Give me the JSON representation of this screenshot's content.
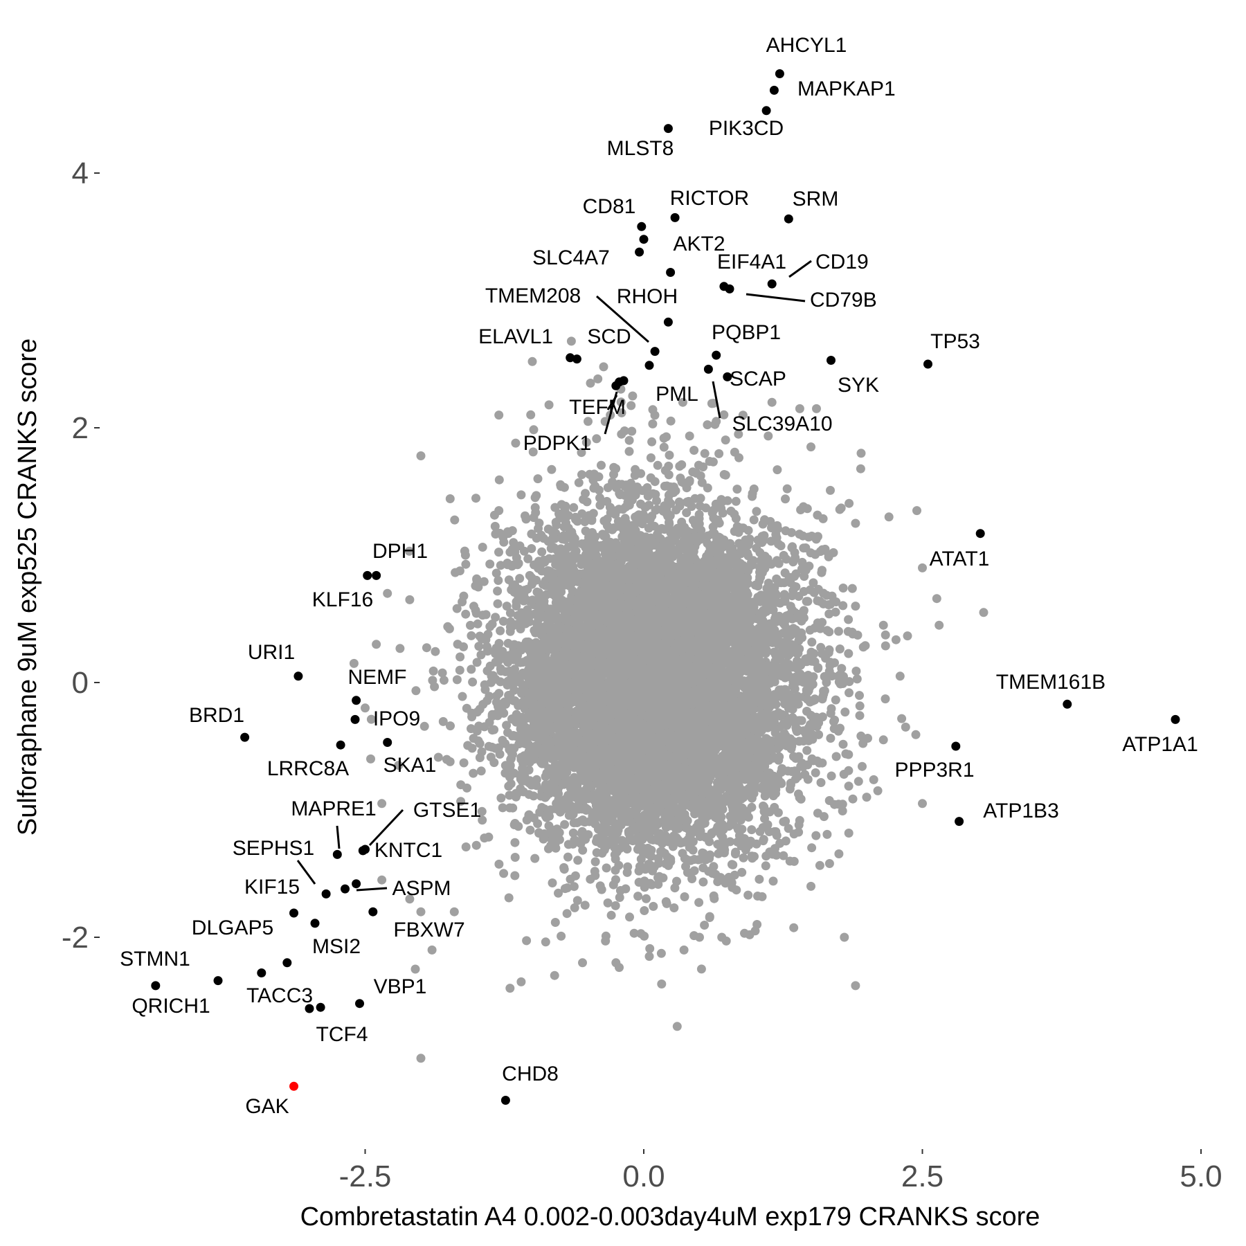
{
  "chart_data": {
    "type": "scatter",
    "xlabel": "Combretastatin A4 0.002-0.003day4uM exp179 CRANKS score",
    "ylabel": "Sulforaphane 9uM exp525 CRANKS score",
    "xlim": [
      -4.6,
      5.05
    ],
    "ylim": [
      -3.55,
      4.85
    ],
    "xticks": [
      -2.5,
      0.0,
      2.5,
      5.0
    ],
    "xtick_labels": [
      "-2.5",
      "0.0",
      "2.5",
      "5.0"
    ],
    "yticks": [
      -2,
      0,
      2,
      4
    ],
    "ytick_labels": [
      "-2",
      "0",
      "2",
      "4"
    ],
    "grid": false,
    "legend": "none",
    "colors": {
      "background": "#ffffff",
      "bulk_points": "#a0a0a0",
      "highlight_points": "#000000",
      "focus_point": "#ff0000"
    },
    "background_cloud": {
      "description_only": false,
      "center": [
        0.1,
        0.0
      ],
      "sd": [
        0.65,
        0.65
      ],
      "count": 9000,
      "extra_gray_points": [
        [
          -0.65,
          2.68
        ],
        [
          -1.0,
          2.52
        ],
        [
          -0.85,
          2.18
        ],
        [
          -1.15,
          1.88
        ],
        [
          -2.0,
          1.78
        ],
        [
          -1.3,
          1.35
        ],
        [
          -1.6,
          1.0
        ],
        [
          -2.1,
          0.65
        ],
        [
          -2.3,
          0.7
        ],
        [
          -2.4,
          0.3
        ],
        [
          -2.6,
          0.15
        ],
        [
          -2.5,
          -0.2
        ],
        [
          -2.45,
          -0.6
        ],
        [
          -2.2,
          -0.65
        ],
        [
          -2.35,
          -0.95
        ],
        [
          -2.35,
          -1.55
        ],
        [
          -2.1,
          -1.7
        ],
        [
          -2.0,
          -1.8
        ],
        [
          -1.7,
          -1.8
        ],
        [
          -1.9,
          -2.1
        ],
        [
          -2.05,
          -2.25
        ],
        [
          -2.0,
          -2.95
        ],
        [
          -1.2,
          -2.4
        ],
        [
          -1.1,
          -2.35
        ],
        [
          -0.8,
          -2.3
        ],
        [
          -0.55,
          -2.2
        ],
        [
          -0.25,
          -2.2
        ],
        [
          0.05,
          -2.15
        ],
        [
          0.3,
          -2.7
        ],
        [
          0.5,
          -2.0
        ],
        [
          0.7,
          -2.0
        ],
        [
          1.0,
          -1.95
        ],
        [
          1.5,
          -1.6
        ],
        [
          1.8,
          -2.0
        ],
        [
          1.9,
          -2.38
        ],
        [
          2.0,
          -0.9
        ],
        [
          2.1,
          -0.85
        ],
        [
          2.15,
          -0.45
        ],
        [
          2.35,
          -0.35
        ],
        [
          2.5,
          -0.95
        ],
        [
          2.3,
          0.05
        ],
        [
          2.15,
          0.45
        ],
        [
          1.9,
          0.6
        ],
        [
          2.45,
          1.35
        ],
        [
          2.2,
          1.3
        ],
        [
          2.5,
          0.9
        ],
        [
          2.65,
          0.45
        ],
        [
          3.05,
          0.55
        ],
        [
          1.9,
          1.25
        ],
        [
          1.95,
          1.8
        ],
        [
          1.5,
          1.85
        ],
        [
          1.55,
          2.15
        ],
        [
          1.4,
          2.15
        ],
        [
          1.15,
          2.2
        ],
        [
          0.85,
          1.95
        ],
        [
          0.65,
          2.05
        ],
        [
          0.35,
          2.2
        ],
        [
          -0.1,
          2.25
        ],
        [
          -0.3,
          2.1
        ],
        [
          -0.5,
          2.05
        ],
        [
          -0.2,
          1.95
        ],
        [
          -1.3,
          2.1
        ],
        [
          -0.95,
          1.6
        ]
      ]
    },
    "series": [
      {
        "name": "",
        "color": "#000000",
        "points": [
          {
            "label": "AHCYL1",
            "x": 1.22,
            "y": 4.78
          },
          {
            "label": "MAPKAP1",
            "x": 1.17,
            "y": 4.65
          },
          {
            "label": "PIK3CD",
            "x": 1.1,
            "y": 4.49
          },
          {
            "label": "MLST8",
            "x": 0.22,
            "y": 4.35
          },
          {
            "label": "RICTOR",
            "x": 0.28,
            "y": 3.65
          },
          {
            "label": "SRM",
            "x": 1.3,
            "y": 3.64
          },
          {
            "label": "CD81",
            "x": -0.02,
            "y": 3.58
          },
          {
            "label": "SLC4A7",
            "x": -0.04,
            "y": 3.38
          },
          {
            "label": "AKT2",
            "x": 0.0,
            "y": 3.48
          },
          {
            "label": "EIF4A1",
            "x": 0.24,
            "y": 3.22
          },
          {
            "label": "CD19",
            "x": 1.15,
            "y": 3.13
          },
          {
            "label": "CD79B",
            "x": 0.77,
            "y": 3.09
          },
          {
            "label": "",
            "x": 0.72,
            "y": 3.11
          },
          {
            "label": "RHOH",
            "x": 0.22,
            "y": 2.83
          },
          {
            "label": "TMEM208",
            "x": 0.1,
            "y": 2.6
          },
          {
            "label": "PQBP1",
            "x": 0.65,
            "y": 2.57
          },
          {
            "label": "SCD",
            "x": 0.05,
            "y": 2.49
          },
          {
            "label": "ELAVL1",
            "x": -0.6,
            "y": 2.54
          },
          {
            "label": "",
            "x": -0.66,
            "y": 2.55
          },
          {
            "label": "SYK",
            "x": 1.68,
            "y": 2.53
          },
          {
            "label": "TP53",
            "x": 2.55,
            "y": 2.5
          },
          {
            "label": "SCAP",
            "x": 0.58,
            "y": 2.46
          },
          {
            "label": "SLC39A10",
            "x": 0.75,
            "y": 2.4
          },
          {
            "label": "PML",
            "x": -0.18,
            "y": 2.37
          },
          {
            "label": "TEFM",
            "x": -0.22,
            "y": 2.36
          },
          {
            "label": "PDPK1",
            "x": -0.25,
            "y": 2.33
          },
          {
            "label": "ATAT1",
            "x": 3.02,
            "y": 1.17
          },
          {
            "label": "DPH1",
            "x": -2.4,
            "y": 0.84
          },
          {
            "label": "KLF16",
            "x": -2.48,
            "y": 0.84
          },
          {
            "label": "URI1",
            "x": -3.1,
            "y": 0.05
          },
          {
            "label": "NEMF",
            "x": -2.58,
            "y": -0.14
          },
          {
            "label": "IPO9",
            "x": -2.59,
            "y": -0.29
          },
          {
            "label": "TMEM161B",
            "x": 3.8,
            "y": -0.17
          },
          {
            "label": "ATP1A1",
            "x": 4.77,
            "y": -0.29
          },
          {
            "label": "BRD1",
            "x": -3.58,
            "y": -0.43
          },
          {
            "label": "SKA1",
            "x": -2.3,
            "y": -0.47
          },
          {
            "label": "LRRC8A",
            "x": -2.72,
            "y": -0.49
          },
          {
            "label": "PPP3R1",
            "x": 2.8,
            "y": -0.5
          },
          {
            "label": "ATP1B3",
            "x": 2.83,
            "y": -1.09
          },
          {
            "label": "MAPRE1",
            "x": -2.75,
            "y": -1.35
          },
          {
            "label": "GTSE1",
            "x": -2.5,
            "y": -1.31
          },
          {
            "label": "KNTC1",
            "x": -2.52,
            "y": -1.32
          },
          {
            "label": "ASPM",
            "x": -2.58,
            "y": -1.58
          },
          {
            "label": "SEPHS1",
            "x": -2.85,
            "y": -1.66
          },
          {
            "label": "",
            "x": -2.68,
            "y": -1.62
          },
          {
            "label": "KIF15",
            "x": -3.14,
            "y": -1.81
          },
          {
            "label": "FBXW7",
            "x": -2.43,
            "y": -1.8
          },
          {
            "label": "MSI2",
            "x": -2.95,
            "y": -1.89
          },
          {
            "label": "DLGAP5",
            "x": -3.2,
            "y": -2.2
          },
          {
            "label": "",
            "x": -3.43,
            "y": -2.28
          },
          {
            "label": "STMN1",
            "x": -3.82,
            "y": -2.34
          },
          {
            "label": "QRICH1",
            "x": -4.38,
            "y": -2.38
          },
          {
            "label": "TACC3",
            "x": -3.0,
            "y": -2.56
          },
          {
            "label": "VBP1",
            "x": -2.55,
            "y": -2.52
          },
          {
            "label": "TCF4",
            "x": -2.9,
            "y": -2.55
          },
          {
            "label": "CHD8",
            "x": -1.24,
            "y": -3.28
          }
        ]
      },
      {
        "name": "",
        "color": "#ff0000",
        "points": [
          {
            "label": "GAK",
            "x": -3.14,
            "y": -3.17
          }
        ]
      }
    ]
  },
  "labels": {
    "AHCYL1": "AHCYL1",
    "MAPKAP1": "MAPKAP1",
    "PIK3CD": "PIK3CD",
    "MLST8": "MLST8",
    "RICTOR": "RICTOR",
    "SRM": "SRM",
    "CD81": "CD81",
    "AKT2": "AKT2",
    "SLC4A7": "SLC4A7",
    "EIF4A1": "EIF4A1",
    "CD19": "CD19",
    "CD79B": "CD79B",
    "TMEM208": "TMEM208",
    "RHOH": "RHOH",
    "ELAVL1": "ELAVL1",
    "SCD": "SCD",
    "PQBP1": "PQBP1",
    "TP53": "TP53",
    "SCAP": "SCAP",
    "SYK": "SYK",
    "PML": "PML",
    "TEFM": "TEFM",
    "SLC39A10": "SLC39A10",
    "PDPK1": "PDPK1",
    "ATAT1": "ATAT1",
    "DPH1": "DPH1",
    "KLF16": "KLF16",
    "URI1": "URI1",
    "NEMF": "NEMF",
    "TMEM161B": "TMEM161B",
    "BRD1": "BRD1",
    "IPO9": "IPO9",
    "ATP1A1": "ATP1A1",
    "SKA1": "SKA1",
    "LRRC8A": "LRRC8A",
    "PPP3R1": "PPP3R1",
    "MAPRE1": "MAPRE1",
    "GTSE1": "GTSE1",
    "ATP1B3": "ATP1B3",
    "SEPHS1": "SEPHS1",
    "KNTC1": "KNTC1",
    "KIF15": "KIF15",
    "ASPM": "ASPM",
    "FBXW7": "FBXW7",
    "DLGAP5": "DLGAP5",
    "MSI2": "MSI2",
    "STMN1": "STMN1",
    "QRICH1": "QRICH1",
    "TACC3": "TACC3",
    "VBP1": "VBP1",
    "TCF4": "TCF4",
    "CHD8": "CHD8",
    "GAK": "GAK"
  }
}
